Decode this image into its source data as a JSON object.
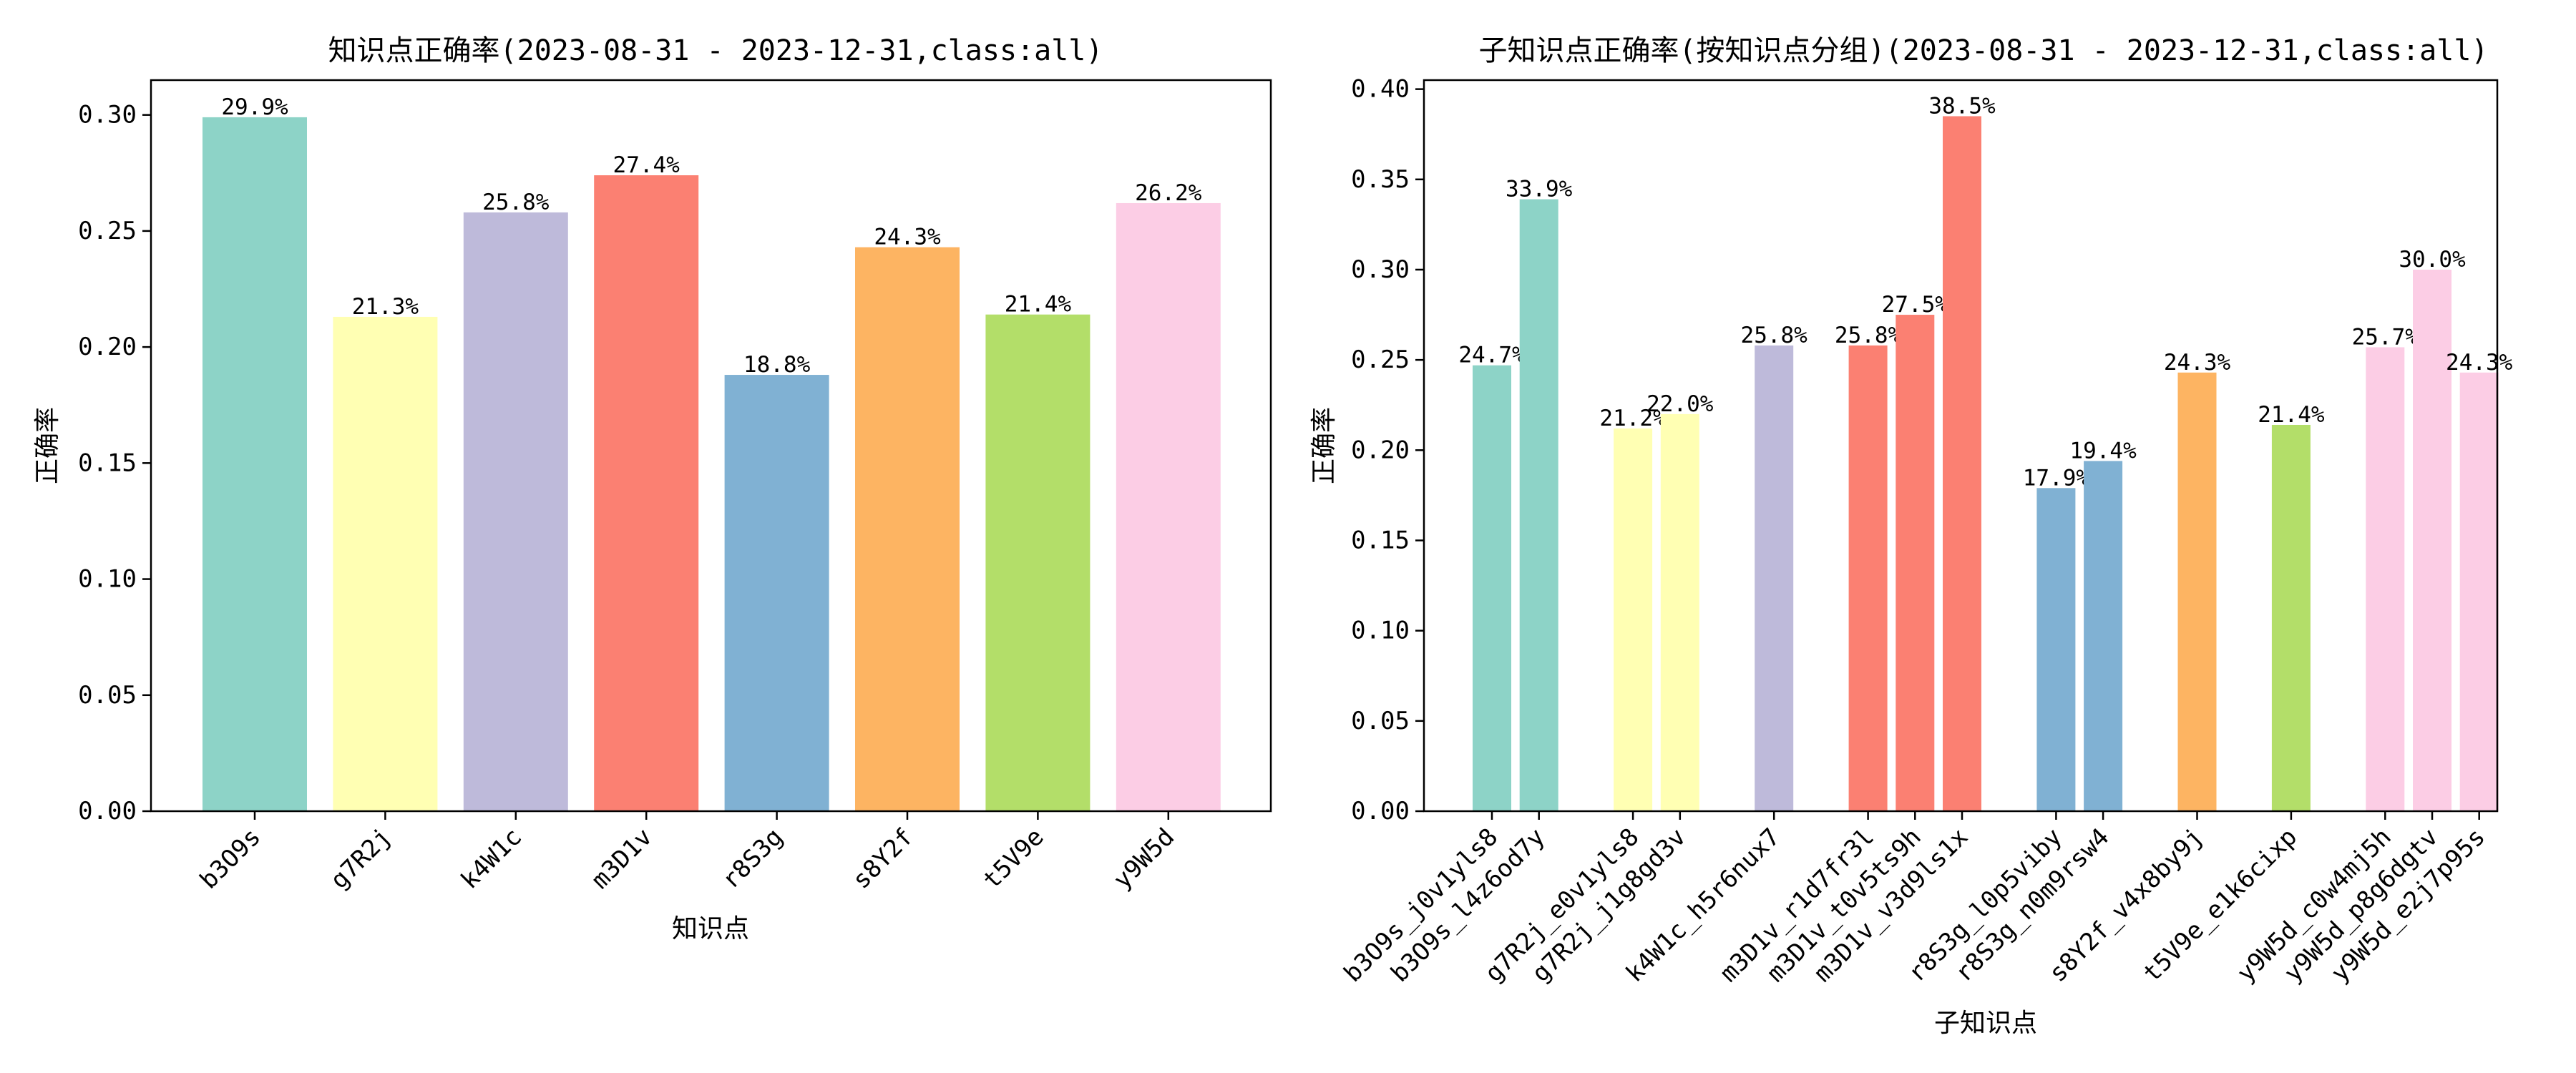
{
  "chart_data": [
    {
      "type": "bar",
      "title": "知识点正确率(2023-08-31 - 2023-12-31,class:all)",
      "xlabel": "知识点",
      "ylabel": "正确率",
      "ylim": [
        0,
        0.315
      ],
      "yticks": [
        "0.00",
        "0.05",
        "0.10",
        "0.15",
        "0.20",
        "0.25",
        "0.30"
      ],
      "categories": [
        "b3O9s",
        "g7R2j",
        "k4W1c",
        "m3D1v",
        "r8S3g",
        "s8Y2f",
        "t5V9e",
        "y9W5d"
      ],
      "values": [
        0.299,
        0.213,
        0.258,
        0.274,
        0.188,
        0.243,
        0.214,
        0.262
      ],
      "labels": [
        "29.9%",
        "21.3%",
        "25.8%",
        "27.4%",
        "18.8%",
        "24.3%",
        "21.4%",
        "26.2%"
      ],
      "colors": [
        "#8dd3c7",
        "#ffffb3",
        "#bebada",
        "#fb8072",
        "#80b1d3",
        "#fdb462",
        "#b3de69",
        "#fccde5"
      ],
      "grid": false,
      "legend": "none"
    },
    {
      "type": "bar",
      "title": "子知识点正确率(按知识点分组)(2023-08-31 - 2023-12-31,class:all)",
      "xlabel": "子知识点",
      "ylabel": "正确率",
      "ylim": [
        0,
        0.405
      ],
      "yticks": [
        "0.00",
        "0.05",
        "0.10",
        "0.15",
        "0.20",
        "0.25",
        "0.30",
        "0.35",
        "0.40"
      ],
      "groups": [
        {
          "name": "b3O9s",
          "color": "#8dd3c7",
          "items": [
            {
              "label": "b3O9s_j0v1yls8",
              "value": 0.247,
              "text": "24.7%"
            },
            {
              "label": "b3O9s_l4z6od7y",
              "value": 0.339,
              "text": "33.9%"
            }
          ]
        },
        {
          "name": "g7R2j",
          "color": "#ffffb3",
          "items": [
            {
              "label": "g7R2j_e0v1yls8",
              "value": 0.212,
              "text": "21.2%"
            },
            {
              "label": "g7R2j_j1g8gd3v",
              "value": 0.22,
              "text": "22.0%"
            }
          ]
        },
        {
          "name": "k4W1c",
          "color": "#bebada",
          "items": [
            {
              "label": "k4W1c_h5r6nux7",
              "value": 0.258,
              "text": "25.8%"
            }
          ]
        },
        {
          "name": "m3D1v",
          "color": "#fb8072",
          "items": [
            {
              "label": "m3D1v_r1d7fr3l",
              "value": 0.258,
              "text": "25.8%"
            },
            {
              "label": "m3D1v_t0v5ts9h",
              "value": 0.275,
              "text": "27.5%"
            },
            {
              "label": "m3D1v_v3d9ls1x",
              "value": 0.385,
              "text": "38.5%"
            }
          ]
        },
        {
          "name": "r8S3g",
          "color": "#80b1d3",
          "items": [
            {
              "label": "r8S3g_l0p5viby",
              "value": 0.179,
              "text": "17.9%"
            },
            {
              "label": "r8S3g_n0m9rsw4",
              "value": 0.194,
              "text": "19.4%"
            }
          ]
        },
        {
          "name": "s8Y2f",
          "color": "#fdb462",
          "items": [
            {
              "label": "s8Y2f_v4x8by9j",
              "value": 0.243,
              "text": "24.3%"
            }
          ]
        },
        {
          "name": "t5V9e",
          "color": "#b3de69",
          "items": [
            {
              "label": "t5V9e_e1k6cixp",
              "value": 0.214,
              "text": "21.4%"
            }
          ]
        },
        {
          "name": "y9W5d",
          "color": "#fccde5",
          "items": [
            {
              "label": "y9W5d_c0w4mj5h",
              "value": 0.257,
              "text": "25.7%"
            },
            {
              "label": "y9W5d_p8g6dgtv",
              "value": 0.3,
              "text": "30.0%"
            },
            {
              "label": "y9W5d_e2j7p95s",
              "value": 0.243,
              "text": "24.3%"
            }
          ]
        }
      ],
      "grid": false,
      "legend": "none"
    }
  ]
}
